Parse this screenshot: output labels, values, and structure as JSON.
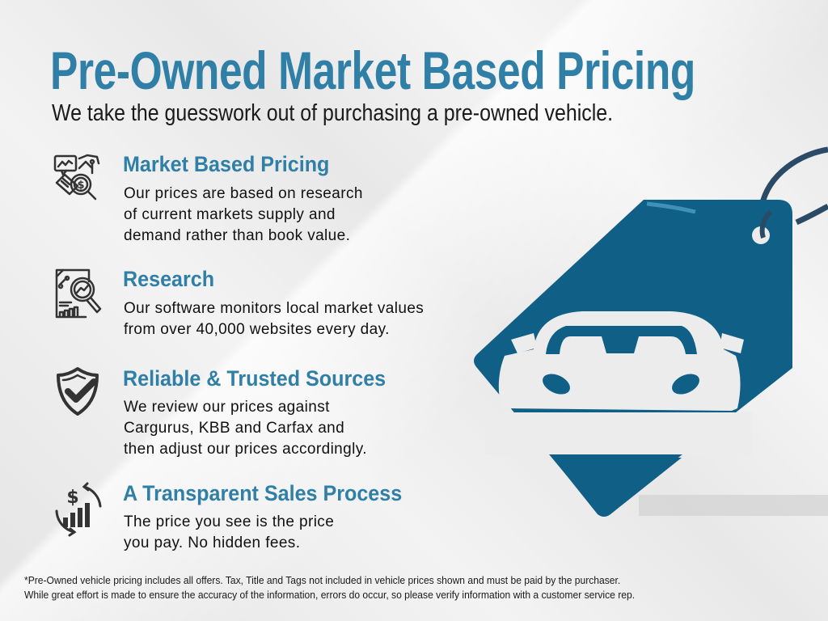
{
  "header": {
    "title": "Pre-Owned Market Based Pricing",
    "subtitle": "We take the guesswork out of purchasing a pre-owned vehicle."
  },
  "items": [
    {
      "icon": "market-analysis-icon",
      "title": "Market Based Pricing",
      "lines": [
        "Our prices are based on research",
        "of current markets supply and",
        "demand rather than book value."
      ]
    },
    {
      "icon": "research-report-icon",
      "title": "Research",
      "lines": [
        "Our software monitors local market values",
        "from over 40,000 websites every day."
      ]
    },
    {
      "icon": "shield-check-icon",
      "title": "Reliable & Trusted Sources",
      "lines": [
        "We review our prices against",
        "Cargurus, KBB and Carfax and",
        "then adjust our prices accordingly."
      ]
    },
    {
      "icon": "dollar-cycle-icon",
      "title": "A Transparent Sales Process",
      "lines": [
        "The price you see is the price",
        "you pay. No hidden fees."
      ]
    }
  ],
  "footnote": {
    "line1": "*Pre-Owned vehicle pricing includes all offers. Tax, Title and Tags not included in vehicle prices shown and must be paid by the purchaser.",
    "line2": "While great effort is made to ensure the accuracy of the information, errors do occur, so please verify information with a customer service rep."
  },
  "colors": {
    "accent": "#2f7fa6",
    "tag": "#0f5f86",
    "ring": "#2b4a66",
    "text": "#111111"
  }
}
